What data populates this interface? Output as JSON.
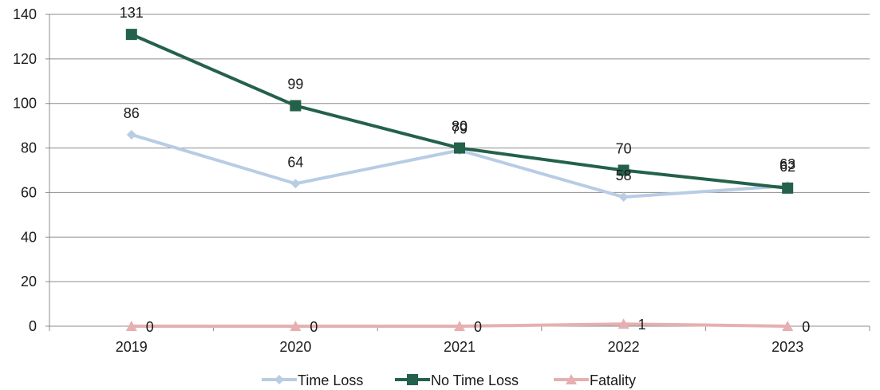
{
  "chart_data": {
    "type": "line",
    "categories": [
      "2019",
      "2020",
      "2021",
      "2022",
      "2023"
    ],
    "ylim": [
      0,
      140
    ],
    "yticks": [
      0,
      20,
      40,
      60,
      80,
      100,
      120,
      140
    ],
    "grid": "horizontal",
    "legend_position": "bottom",
    "series": [
      {
        "name": "Time Loss",
        "values": [
          86,
          64,
          79,
          58,
          63
        ],
        "color": "#b8cce4",
        "marker": "diamond",
        "labels": [
          "86",
          "64",
          "79",
          "58",
          "63"
        ]
      },
      {
        "name": "No Time Loss",
        "values": [
          131,
          99,
          80,
          70,
          62
        ],
        "color": "#24614a",
        "marker": "square",
        "labels": [
          "131",
          "99",
          "80",
          "70",
          "62"
        ]
      },
      {
        "name": "Fatality",
        "values": [
          0,
          0,
          0,
          1,
          0
        ],
        "color": "#e6b0b0",
        "marker": "triangle",
        "labels": [
          "0",
          "0",
          "0",
          "1",
          "0"
        ]
      }
    ]
  }
}
